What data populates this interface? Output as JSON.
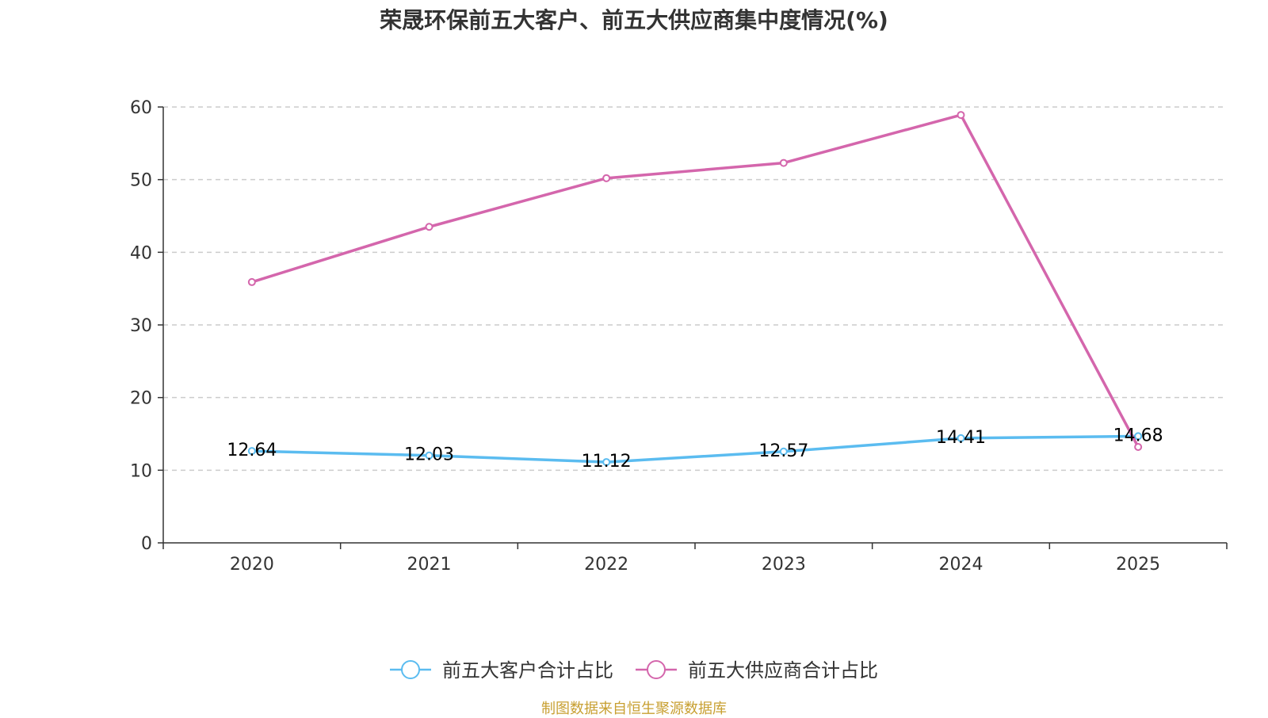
{
  "colors": {
    "series_1": "#5bbcf0",
    "series_2": "#d466ac",
    "grid": "#cccccc",
    "axis": "#333333",
    "source": "#c8a032"
  },
  "source_note": "制图数据来自恒生聚源数据库",
  "chart_data": {
    "type": "line",
    "title": "荣晟环保前五大客户、前五大供应商集中度情况(%)",
    "xlabel": "",
    "ylabel": "",
    "categories": [
      "2020",
      "2021",
      "2022",
      "2023",
      "2024",
      "2025"
    ],
    "ylim": [
      0,
      60
    ],
    "yticks": [
      0,
      10,
      20,
      30,
      40,
      50,
      60
    ],
    "grid": true,
    "legend_position": "bottom-center",
    "series": [
      {
        "name": "前五大客户合计占比",
        "values": [
          12.64,
          12.03,
          11.12,
          12.57,
          14.41,
          14.68
        ],
        "labels": [
          "12.64",
          "12.03",
          "11.12",
          "12.57",
          "14.41",
          "14.68"
        ],
        "show_labels": true
      },
      {
        "name": "前五大供应商合计占比",
        "values": [
          35.9,
          43.5,
          50.2,
          52.3,
          58.9,
          13.2
        ],
        "show_labels": false
      }
    ]
  }
}
